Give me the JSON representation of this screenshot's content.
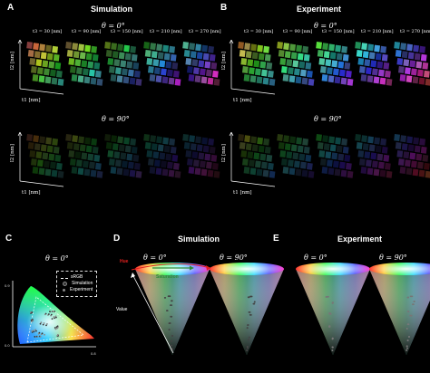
{
  "panels": {
    "A": {
      "letter": "A",
      "title": "Simulation"
    },
    "B": {
      "letter": "B",
      "title": "Experiment"
    },
    "C": {
      "letter": "C"
    },
    "D": {
      "letter": "D",
      "title": "Simulation"
    },
    "E": {
      "letter": "E",
      "title": "Experiment"
    }
  },
  "theta_0": "θ = 0°",
  "theta_90": "θ = 90°",
  "grid_labels": [
    "t3 = 30 [nm]",
    "t3 = 90 [nm]",
    "t3 = 150 [nm]",
    "t3 = 210 [nm]",
    "t3 = 270 [nm]"
  ],
  "axes": {
    "y_label": "l2 [nm]",
    "x_label": "t1 [nm]",
    "ticks": [
      "30",
      "90",
      "150",
      "210",
      "270"
    ]
  },
  "chromaticity": {
    "y_tick_top": "0.9",
    "y_tick_bottom": "0.0",
    "x_tick_right": "0.8",
    "legend": {
      "srgb": "sRGB",
      "simulation": "Simulation",
      "experiment": "Experiment"
    }
  },
  "cone_labels": {
    "hue": "Hue",
    "saturation": "Saturation",
    "value": "Value"
  },
  "colors": {
    "hue_arrow": "#e0201e",
    "saturation_arrow": "#2e8b3a",
    "simulation_marker": "#333333",
    "experiment_marker": "#888888"
  }
}
